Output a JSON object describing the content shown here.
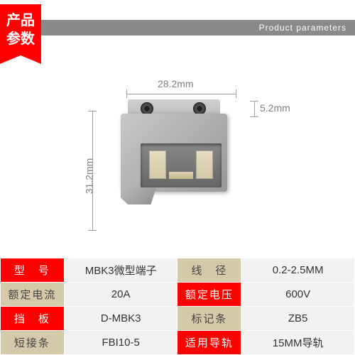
{
  "header": {
    "ribbon_line1": "产品",
    "ribbon_line2": "参数",
    "subtitle": "Product parameters"
  },
  "dimensions": {
    "width": "28.2mm",
    "slot": "5.2mm",
    "height": "31.2mm"
  },
  "specs": {
    "rows": [
      {
        "l1": "型　号",
        "v1": "MBK3微型端子",
        "l2": "线　径",
        "v2": "0.2-2.5MM",
        "l1cls": "label-red",
        "l2cls": "label-beige"
      },
      {
        "l1": "额定电流",
        "v1": "20A",
        "l2": "额定电压",
        "v2": "600V",
        "l1cls": "label-beige",
        "l2cls": "label-red"
      },
      {
        "l1": "挡　板",
        "v1": "D-MBK3",
        "l2": "标记条",
        "v2": "ZB5",
        "l1cls": "label-red",
        "l2cls": "label-beige"
      },
      {
        "l1": "短接条",
        "v1": "FBI10-5",
        "l2": "适用导轨",
        "v2": "15MM导轨",
        "l1cls": "label-beige",
        "l2cls": "label-red"
      }
    ]
  },
  "colors": {
    "red": "#ff0000",
    "beige": "#d4c9a8",
    "grey_header": "#8a8a8a",
    "value_bg": "#f2f2f2",
    "dim_text": "#808080"
  }
}
